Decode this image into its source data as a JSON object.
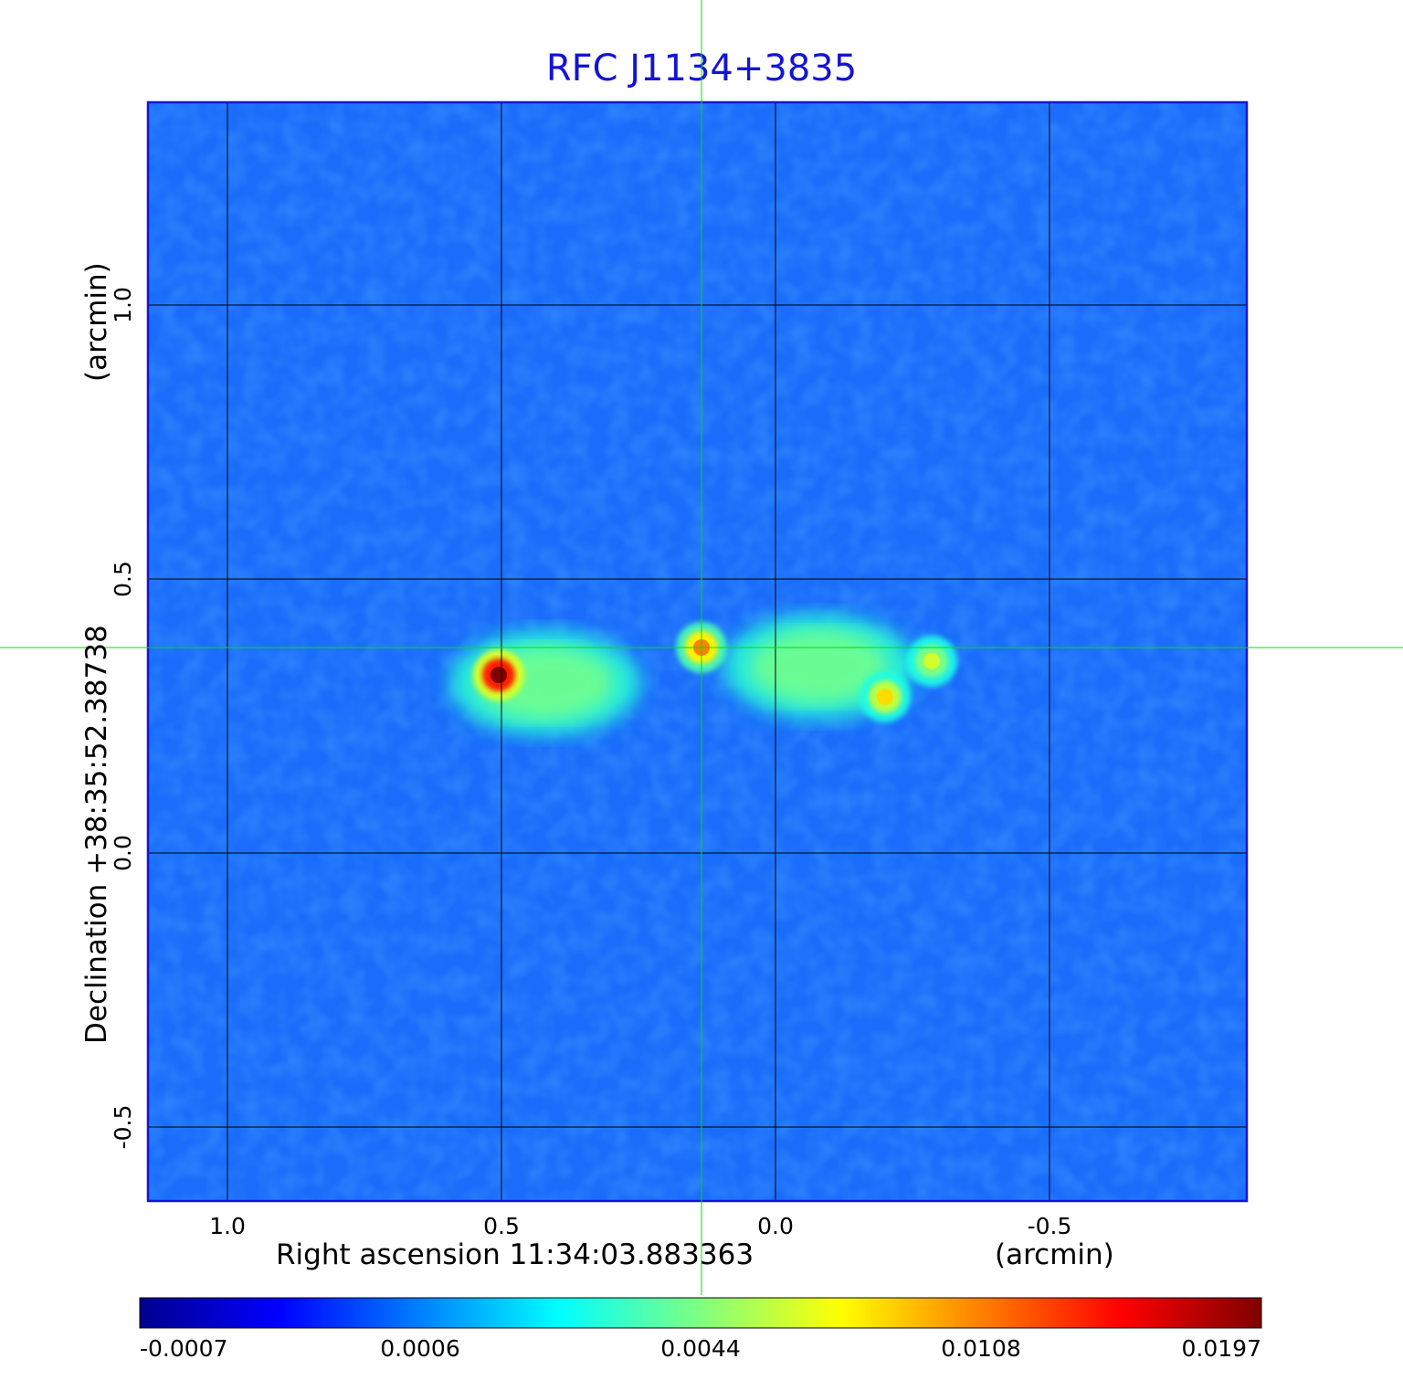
{
  "chart_data": {
    "type": "heatmap",
    "title": "RFC J1134+3835",
    "xlabel": "Right ascension  11:34:03.883363",
    "xunit": "(arcmin)",
    "ylabel": "Declination  +38:35:52.38738",
    "yunit": "(arcmin)",
    "xlim": [
      1.145,
      -0.86
    ],
    "ylim": [
      -0.635,
      1.37
    ],
    "xticks": [
      {
        "value": 1.0,
        "label": "1.0"
      },
      {
        "value": 0.5,
        "label": "0.5"
      },
      {
        "value": 0.0,
        "label": "0.0"
      },
      {
        "value": -0.5,
        "label": "-0.5"
      }
    ],
    "yticks": [
      {
        "value": 1.0,
        "label": "1.0"
      },
      {
        "value": 0.5,
        "label": "0.5"
      },
      {
        "value": 0.0,
        "label": "0.0"
      },
      {
        "value": -0.5,
        "label": "-0.5"
      }
    ],
    "grid": true,
    "crosshair": {
      "x": 0.135,
      "y": 0.375,
      "color": "#00e000"
    },
    "colormap": "jet",
    "colorbar": {
      "ticks": [
        "-0.0007",
        "0.0006",
        "0.0044",
        "0.0108",
        "0.0197"
      ],
      "min": -0.0007,
      "max": 0.0197
    },
    "sources": [
      {
        "x": 0.505,
        "y": 0.325,
        "peak": 0.0197,
        "type": "compact"
      },
      {
        "x": 0.135,
        "y": 0.375,
        "peak": 0.0108,
        "type": "compact"
      },
      {
        "x": -0.2,
        "y": 0.285,
        "peak": 0.0085,
        "type": "compact"
      },
      {
        "x": -0.285,
        "y": 0.35,
        "peak": 0.0065,
        "type": "compact"
      },
      {
        "x": 0.42,
        "y": 0.31,
        "peak": 0.0042,
        "type": "lobe"
      },
      {
        "x": -0.08,
        "y": 0.34,
        "peak": 0.0042,
        "type": "lobe"
      }
    ]
  }
}
